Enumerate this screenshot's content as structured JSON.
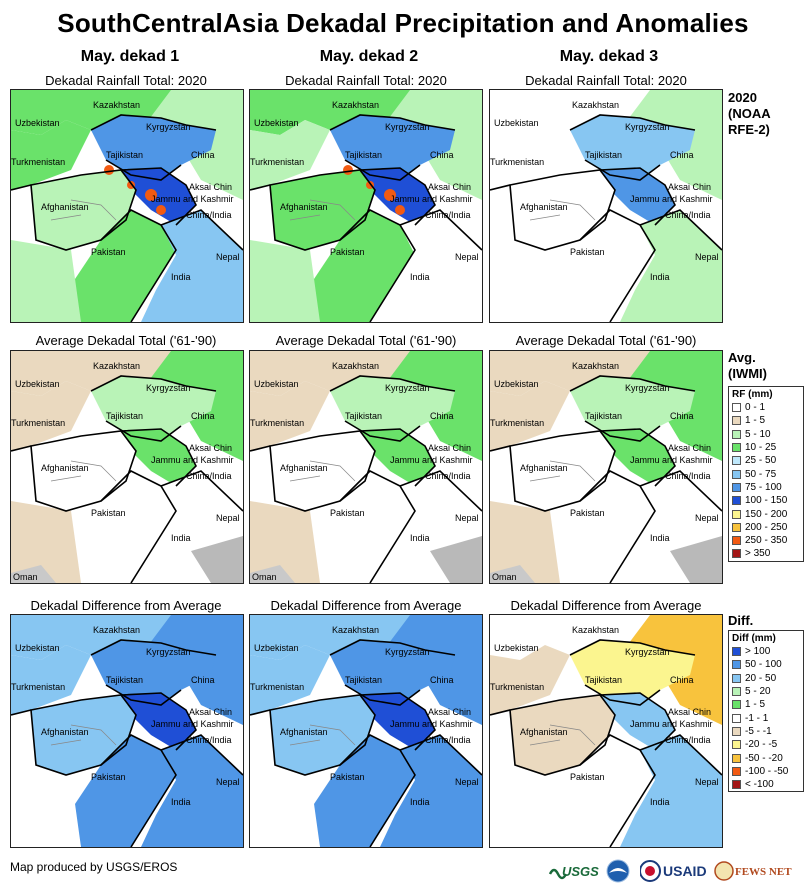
{
  "title": "SouthCentralAsia Dekadal Precipitation and Anomalies",
  "columns": [
    {
      "label": "May. dekad 1"
    },
    {
      "label": "May. dekad 2"
    },
    {
      "label": "May. dekad 3"
    }
  ],
  "row_captions": {
    "total": "Dekadal Rainfall Total: 2020",
    "average": "Average Dekadal Total ('61-'90)",
    "diff": "Dekadal Difference from Average"
  },
  "map_labels": {
    "kazakhstan": "Kazakhstan",
    "uzbekistan": "Uzbekistan",
    "kyrgyzstan": "Kyrgyzstan",
    "tajikistan": "Tajikistan",
    "turkmenistan": "Turkmenistan",
    "china": "China",
    "aksai_chin": "Aksai Chin",
    "jammu_kashmir": "Jammu and Kashmir",
    "china_india": "China/India",
    "afghanistan": "Afghanistan",
    "pakistan": "Pakistan",
    "nepal": "Nepal",
    "india": "India",
    "oman": "Oman"
  },
  "side_titles": {
    "row1": [
      "2020",
      "(NOAA",
      "RFE-2)"
    ],
    "row2": [
      "Avg.",
      "(IWMI)"
    ],
    "row3": [
      "Diff."
    ]
  },
  "rf_legend": {
    "header": "RF (mm)",
    "items": [
      {
        "label": "0 - 1",
        "color": "#ffffff"
      },
      {
        "label": "1 - 5",
        "color": "#ead9bf"
      },
      {
        "label": "5 - 10",
        "color": "#b9f3b7"
      },
      {
        "label": "10 - 25",
        "color": "#6ae26a"
      },
      {
        "label": "25 - 50",
        "color": "#bfe8fb"
      },
      {
        "label": "50 - 75",
        "color": "#87c6f2"
      },
      {
        "label": "75 - 100",
        "color": "#4f96e6"
      },
      {
        "label": "100 - 150",
        "color": "#1f4fd6"
      },
      {
        "label": "150 - 200",
        "color": "#fbf58f"
      },
      {
        "label": "200 - 250",
        "color": "#f8c33d"
      },
      {
        "label": "250 - 350",
        "color": "#f25a12"
      },
      {
        "label": "> 350",
        "color": "#a31616"
      }
    ]
  },
  "diff_legend": {
    "header": "Diff (mm)",
    "items": [
      {
        "label": "> 100",
        "color": "#1f4fd6"
      },
      {
        "label": "50 - 100",
        "color": "#4f96e6"
      },
      {
        "label": "20 - 50",
        "color": "#87c6f2"
      },
      {
        "label": "5 - 20",
        "color": "#b9f3b7"
      },
      {
        "label": "1 - 5",
        "color": "#6ae26a"
      },
      {
        "label": "-1 - 1",
        "color": "#ffffff"
      },
      {
        "label": "-5 - -1",
        "color": "#ead9bf"
      },
      {
        "label": "-20 - -5",
        "color": "#fbf58f"
      },
      {
        "label": "-50 - -20",
        "color": "#f8c33d"
      },
      {
        "label": "-100 - -50",
        "color": "#f25a12"
      },
      {
        "label": "< -100",
        "color": "#a31616"
      }
    ]
  },
  "footer": {
    "credit": "Map produced by USGS/EROS",
    "logos": [
      "USGS",
      "USAID",
      "FEWS NET"
    ]
  }
}
